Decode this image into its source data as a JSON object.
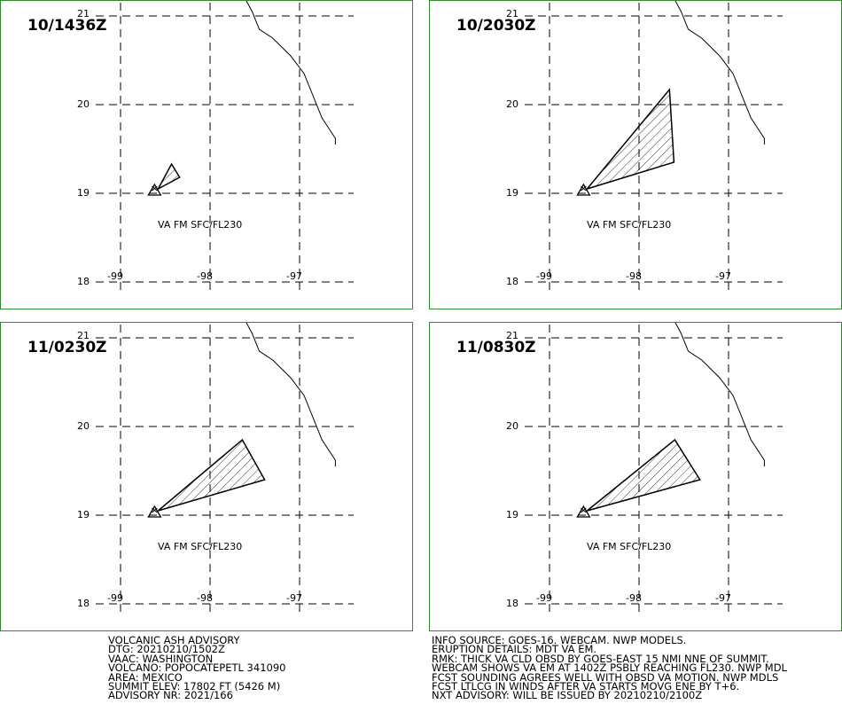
{
  "grid": {
    "lat_labels": [
      "21",
      "20",
      "19",
      "18"
    ],
    "lon_labels": [
      "-99",
      "-98",
      "-97"
    ]
  },
  "panels": [
    {
      "time": "10/1436Z",
      "label": "VA FM SFC/FL230",
      "cloud": [
        [
          -98.58,
          19.05
        ],
        [
          -98.43,
          19.33
        ],
        [
          -98.34,
          19.18
        ]
      ]
    },
    {
      "time": "10/2030Z",
      "label": "VA FM SFC/FL230",
      "cloud": [
        [
          -98.58,
          19.05
        ],
        [
          -97.66,
          20.17
        ],
        [
          -97.61,
          19.35
        ]
      ]
    },
    {
      "time": "11/0230Z",
      "label": "VA FM SFC/FL230",
      "cloud": [
        [
          -98.58,
          19.05
        ],
        [
          -97.64,
          19.85
        ],
        [
          -97.39,
          19.4
        ]
      ]
    },
    {
      "time": "11/0830Z",
      "label": "VA FM SFC/FL230",
      "cloud": [
        [
          -98.58,
          19.05
        ],
        [
          -97.6,
          19.85
        ],
        [
          -97.32,
          19.4
        ]
      ]
    }
  ],
  "volcano_location": [
    -98.62,
    19.02
  ],
  "coastline": [
    [
      -97.61,
      21.2
    ],
    [
      -97.53,
      21.05
    ],
    [
      -97.45,
      20.85
    ],
    [
      -97.3,
      20.75
    ],
    [
      -97.1,
      20.55
    ],
    [
      -96.95,
      20.35
    ],
    [
      -96.85,
      20.1
    ],
    [
      -96.75,
      19.85
    ],
    [
      -96.6,
      19.62
    ],
    [
      -96.6,
      19.55
    ]
  ],
  "advisory_left": [
    "VOLCANIC ASH ADVISORY",
    "DTG: 20210210/1502Z",
    "VAAC: WASHINGTON",
    "VOLCANO: POPOCATEPETL 341090",
    "AREA: MEXICO",
    "SUMMIT ELEV: 17802 FT (5426 M)",
    "ADVISORY NR: 2021/166"
  ],
  "advisory_right": [
    "INFO SOURCE: GOES-16. WEBCAM. NWP MODELS.",
    "ERUPTION DETAILS: MDT VA EM.",
    "RMK: THICK VA CLD OBSD BY GOES-EAST 15 NMI NNE OF SUMMIT.",
    "WEBCAM SHOWS VA EM AT 1402Z PSBLY REACHING FL230. NWP MDL",
    "FCST SOUNDING AGREES WELL WITH OBSD VA MOTION. NWP MDLS",
    "FCST LTLCG IN WINDS AFTER VA STARTS MOVG ENE BY T+6.",
    "NXT ADVISORY: WILL BE ISSUED BY 20210210/2100Z"
  ],
  "colors": {
    "panel_border": "#2e8b2e",
    "lines": "#000000"
  }
}
